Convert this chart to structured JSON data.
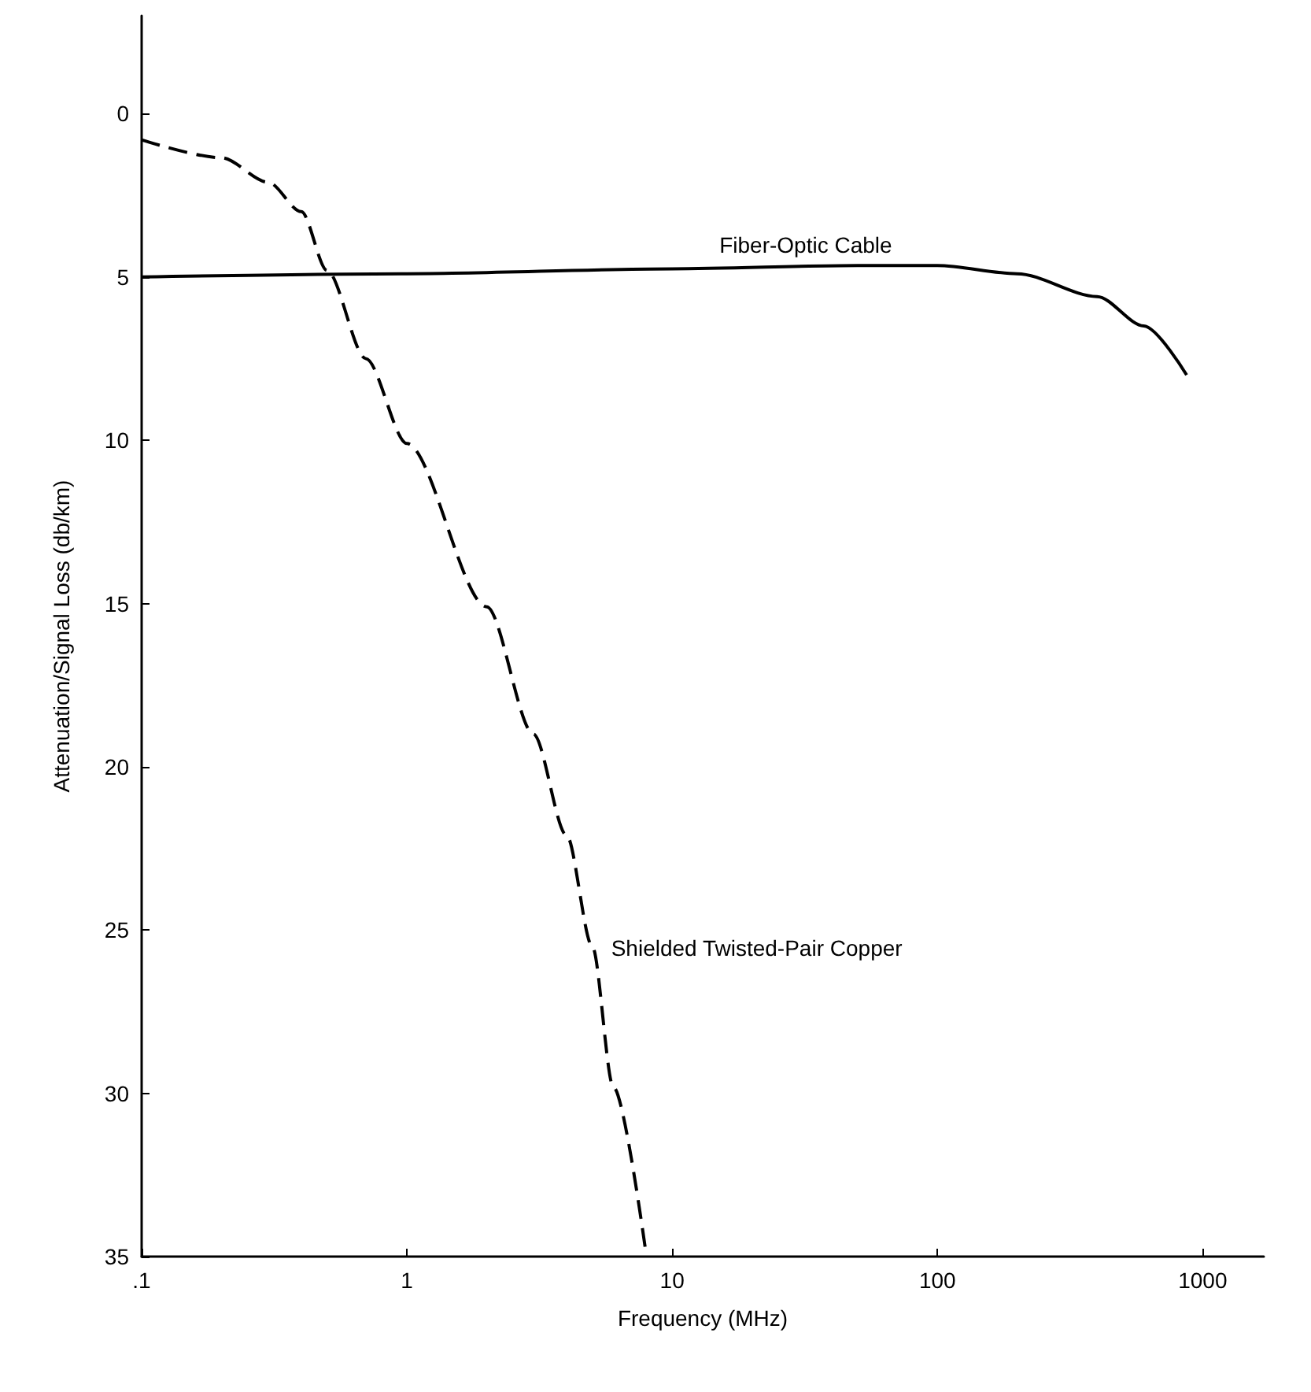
{
  "chart_data": {
    "type": "line",
    "xlabel": "Frequency (MHz)",
    "ylabel": "Attenuation/Signal Loss (db/km)",
    "log": "x",
    "xlim": [
      0.1,
      1700
    ],
    "xticks": [
      {
        "value": 0.1,
        "label": ".1"
      },
      1,
      10,
      100,
      1000
    ],
    "ylim": [
      35,
      -3
    ],
    "yticks": [
      0,
      5,
      10,
      15,
      20,
      25,
      30,
      35
    ],
    "grid": false,
    "legend": false,
    "marker": "none",
    "series": [
      {
        "name": "Fiber-Optic Cable",
        "color": "#000000",
        "line_style": "solid",
        "x": [
          0.1,
          1,
          10,
          50,
          100,
          200,
          400,
          600,
          870
        ],
        "values": [
          5,
          4.9,
          4.75,
          4.65,
          4.65,
          4.9,
          5.6,
          6.5,
          8.0
        ]
      },
      {
        "name": "Shielded Twisted-Pair Copper",
        "color": "#000000",
        "line_style": "dashed",
        "x": [
          0.1,
          0.2,
          0.3,
          0.4,
          0.5,
          0.7,
          1,
          2,
          3,
          4,
          5,
          6,
          8
        ],
        "values": [
          0.8,
          1.35,
          2.1,
          3.0,
          4.8,
          7.5,
          10.1,
          15.1,
          19,
          22.1,
          25.5,
          29.8,
          35
        ]
      }
    ]
  }
}
